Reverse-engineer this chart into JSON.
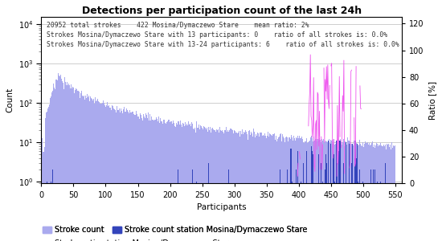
{
  "title": "Detections per participation count of the last 24h",
  "xlabel": "Participants",
  "ylabel_left": "Count",
  "ylabel_right": "Ratio [%]",
  "annotation_lines": [
    "20952 total strokes    422 Mosina/Dymaczewo Stare    mean ratio: 2%",
    "Strokes Mosina/Dymaczewo Stare with 13 participants: 0    ratio of all strokes is: 0.0%",
    "Strokes Mosina/Dymaczewo Stare with 13-24 participants: 6    ratio of all strokes is: 0.0%"
  ],
  "xlim": [
    0,
    560
  ],
  "ylim_left": [
    0.9,
    15000
  ],
  "ylim_right": [
    0,
    125
  ],
  "right_yticks": [
    0,
    20,
    40,
    60,
    80,
    100,
    120
  ],
  "right_yticklabels": [
    "0",
    "20",
    "40",
    "60",
    "80",
    "100",
    "120"
  ],
  "bar_color_stroke": "#aaaaee",
  "bar_color_station": "#3344bb",
  "line_color_ratio": "#ee55ee",
  "bar_width": 1.0,
  "figsize": [
    5.5,
    3.0
  ],
  "dpi": 100,
  "title_fontsize": 9,
  "annotation_fontsize": 5.8,
  "axis_fontsize": 7.5,
  "tick_fontsize": 7,
  "legend_fontsize": 7,
  "grid_color": "#bbbbbb",
  "background_color": "#ffffff"
}
